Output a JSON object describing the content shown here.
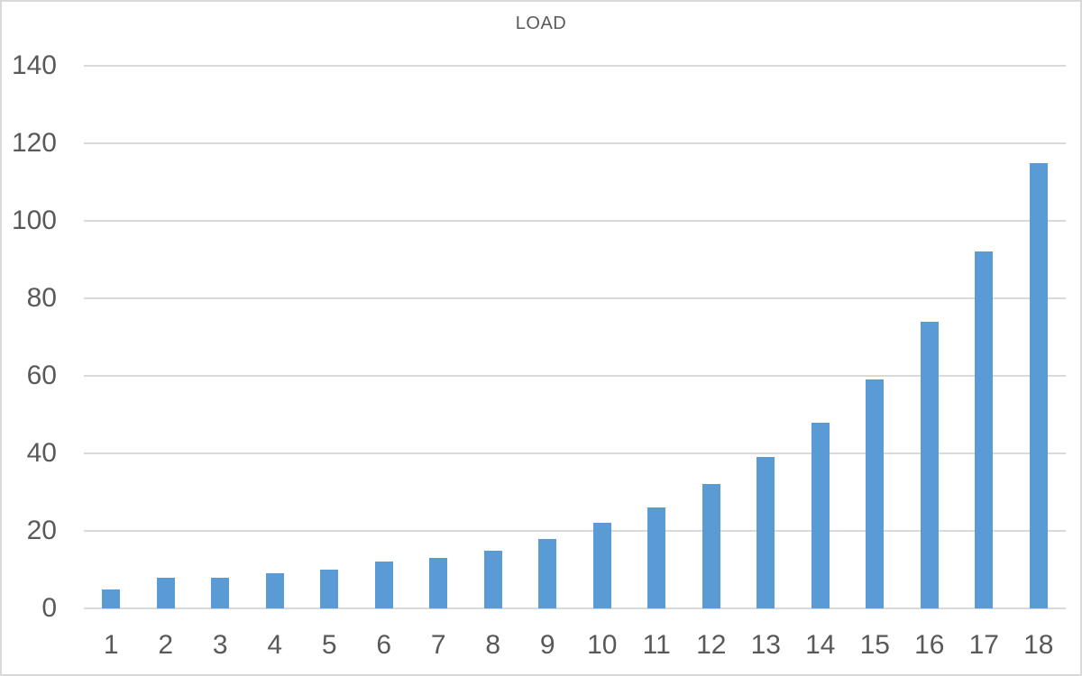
{
  "title": "LOAD",
  "colors": {
    "bar": "#5B9BD5",
    "gridline": "#D9D9D9",
    "frame_border": "#D9D9D9",
    "axis_text": "#595959",
    "title_text": "#595959",
    "background": "#FFFFFF"
  },
  "chart_data": {
    "type": "bar",
    "title": "LOAD",
    "categories": [
      "1",
      "2",
      "3",
      "4",
      "5",
      "6",
      "7",
      "8",
      "9",
      "10",
      "11",
      "12",
      "13",
      "14",
      "15",
      "16",
      "17",
      "18"
    ],
    "values": [
      5,
      8,
      8,
      9,
      10,
      12,
      13,
      15,
      18,
      22,
      26,
      32,
      39,
      48,
      59,
      74,
      92,
      115
    ],
    "xlabel": "",
    "ylabel": "",
    "ylim": [
      0,
      140
    ],
    "yticks": [
      0,
      20,
      40,
      60,
      80,
      100,
      120,
      140
    ],
    "grid": "horizontal",
    "legend_position": "none",
    "bar_color": "#5B9BD5"
  }
}
